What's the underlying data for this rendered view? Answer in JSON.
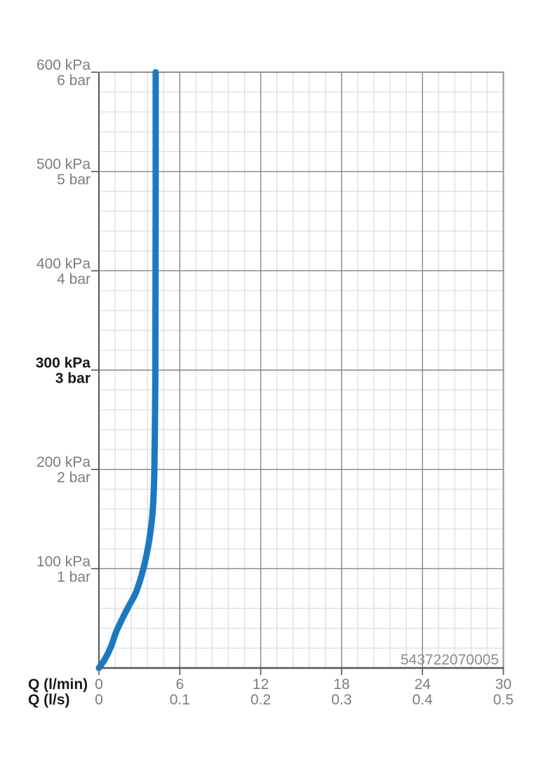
{
  "product_number": "543722070005",
  "chart_data": {
    "type": "line",
    "title": "",
    "x_axis": {
      "primary_label": "Q (l/min)",
      "secondary_label": "Q (l/s)",
      "primary_ticks": [
        "0",
        "6",
        "12",
        "18",
        "24",
        "30"
      ],
      "secondary_ticks": [
        "0",
        "0.1",
        "0.2",
        "0.3",
        "0.4",
        "0.5"
      ],
      "range_lmin": [
        0,
        30
      ],
      "major_step_lmin": 6,
      "minor_divisions_per_major": 5,
      "grid": "on"
    },
    "y_axis": {
      "range_kpa": [
        0,
        600
      ],
      "major_step_kpa": 100,
      "minor_divisions_per_major": 5,
      "grid": "on",
      "ticks": [
        {
          "kpa": "600 kPa",
          "bar": "6 bar",
          "value": 600,
          "emphasis": false
        },
        {
          "kpa": "500 kPa",
          "bar": "5 bar",
          "value": 500,
          "emphasis": false
        },
        {
          "kpa": "400 kPa",
          "bar": "4 bar",
          "value": 400,
          "emphasis": false
        },
        {
          "kpa": "300 kPa",
          "bar": "3 bar",
          "value": 300,
          "emphasis": true
        },
        {
          "kpa": "200 kPa",
          "bar": "2 bar",
          "value": 200,
          "emphasis": false
        },
        {
          "kpa": "100 kPa",
          "bar": "1 bar",
          "value": 100,
          "emphasis": false
        }
      ]
    },
    "series": [
      {
        "name": "flow-curve",
        "color": "#1b79c2",
        "points_q_lmin_vs_kpa": [
          [
            0,
            0
          ],
          [
            0.45,
            9
          ],
          [
            0.85,
            20
          ],
          [
            1.3,
            37
          ],
          [
            1.75,
            50
          ],
          [
            2.2,
            62
          ],
          [
            2.68,
            74
          ],
          [
            3.0,
            86
          ],
          [
            3.28,
            99
          ],
          [
            3.55,
            115
          ],
          [
            3.78,
            133
          ],
          [
            3.95,
            152
          ],
          [
            4.05,
            172
          ],
          [
            4.11,
            199
          ],
          [
            4.15,
            235
          ],
          [
            4.18,
            280
          ],
          [
            4.19,
            330
          ],
          [
            4.2,
            400
          ],
          [
            4.21,
            500
          ],
          [
            4.21,
            600
          ]
        ]
      }
    ],
    "legend": "none",
    "colors": {
      "curve": "#1b79c2",
      "grid_minor": "#e0e0e0",
      "grid_major": "#858585",
      "frame": "#949494",
      "axis": "#555555",
      "label_gray": "#7d7d7d",
      "label_black": "#1a1a1a",
      "product_number_gray": "#8c8c8c"
    }
  }
}
